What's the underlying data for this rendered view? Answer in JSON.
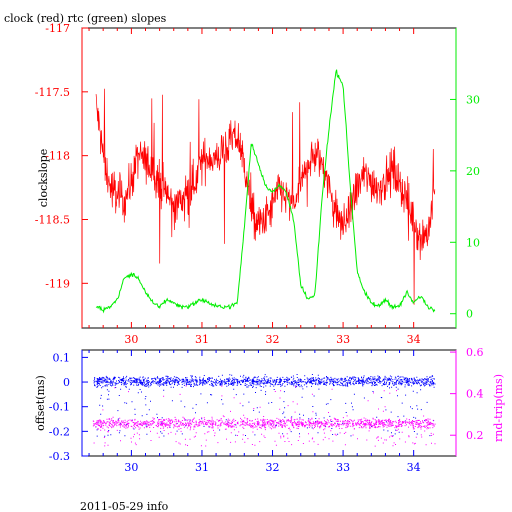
{
  "header": {
    "title": "clock (red) rtc (green) slopes"
  },
  "footer": {
    "date_label": "2011-05-29 info"
  },
  "colors": {
    "red": "#ff0000",
    "green": "#00ee00",
    "blue": "#0000ff",
    "magenta": "#ff00ff",
    "axis": "#000000"
  },
  "chart_data": [
    {
      "type": "line",
      "title": "clock (red) rtc (green) slopes",
      "xlim": [
        29.3,
        34.6
      ],
      "x_ticks": [
        "30",
        "31",
        "32",
        "33",
        "34"
      ],
      "left_axis": {
        "label": "clockslope",
        "ylim": [
          -119.35,
          -117
        ],
        "ticks": [
          "-117",
          "-117.5",
          "-118",
          "-118.5",
          "-119"
        ]
      },
      "right_axis": {
        "label": "",
        "ylim": [
          -2,
          40
        ],
        "ticks": [
          "0",
          "10",
          "20",
          "30"
        ]
      },
      "series": [
        {
          "axis": "left",
          "color": "red",
          "x": [
            29.5,
            29.6,
            29.7,
            29.8,
            29.9,
            30.0,
            30.1,
            30.2,
            30.3,
            30.4,
            30.5,
            30.6,
            30.7,
            30.8,
            30.9,
            31.0,
            31.1,
            31.2,
            31.3,
            31.4,
            31.5,
            31.6,
            31.7,
            31.8,
            31.9,
            32.0,
            32.1,
            32.2,
            32.3,
            32.4,
            32.5,
            32.6,
            32.7,
            32.8,
            32.9,
            33.0,
            33.1,
            33.2,
            33.3,
            33.4,
            33.5,
            33.6,
            33.7,
            33.8,
            33.9,
            34.0,
            34.1,
            34.2,
            34.3
          ],
          "y": [
            -117.6,
            -118.0,
            -118.25,
            -118.3,
            -118.35,
            -118.2,
            -118.0,
            -118.05,
            -118.1,
            -118.2,
            -118.3,
            -118.4,
            -118.35,
            -118.3,
            -118.2,
            -118.05,
            -118.0,
            -118.05,
            -117.95,
            -117.9,
            -117.85,
            -118.05,
            -118.45,
            -118.55,
            -118.5,
            -118.4,
            -118.25,
            -118.35,
            -118.4,
            -118.25,
            -118.05,
            -118.0,
            -118.05,
            -118.25,
            -118.45,
            -118.55,
            -118.45,
            -118.25,
            -118.15,
            -118.2,
            -118.25,
            -118.2,
            -118.1,
            -118.2,
            -118.35,
            -118.5,
            -118.65,
            -118.6,
            -118.3
          ]
        },
        {
          "axis": "right",
          "color": "green",
          "x": [
            29.5,
            29.6,
            29.7,
            29.8,
            29.9,
            30.0,
            30.1,
            30.2,
            30.3,
            30.4,
            30.5,
            30.6,
            30.7,
            30.8,
            30.9,
            31.0,
            31.1,
            31.2,
            31.3,
            31.4,
            31.5,
            31.6,
            31.7,
            31.8,
            31.9,
            32.0,
            32.1,
            32.2,
            32.3,
            32.4,
            32.5,
            32.6,
            32.7,
            32.8,
            32.9,
            33.0,
            33.1,
            33.2,
            33.3,
            33.4,
            33.5,
            33.6,
            33.7,
            33.8,
            33.9,
            34.0,
            34.1,
            34.2,
            34.3
          ],
          "y": [
            1,
            0.5,
            1,
            2,
            5,
            5.5,
            5,
            3,
            1.5,
            1,
            2,
            1.5,
            1,
            1,
            1.5,
            2,
            1.5,
            1,
            1,
            1,
            1.5,
            12,
            24,
            21,
            18,
            17,
            18,
            17,
            13,
            4,
            2,
            2.5,
            16,
            26,
            34,
            32,
            18,
            6,
            3,
            1.5,
            1,
            2,
            1,
            1,
            3,
            1.5,
            2.5,
            1,
            0.5
          ]
        }
      ]
    },
    {
      "type": "scatter",
      "title": "",
      "xlim": [
        29.3,
        34.6
      ],
      "x_ticks": [
        "30",
        "31",
        "32",
        "33",
        "34"
      ],
      "left_axis": {
        "label": "offset(ms)",
        "ylim": [
          -0.3,
          0.13
        ],
        "ticks": [
          "0.1",
          "0",
          "-0.1",
          "-0.2",
          "-0.3"
        ]
      },
      "right_axis": {
        "label": "rnd-trip(ms)",
        "ylim": [
          0.1,
          0.61
        ],
        "ticks": [
          "0.6",
          "0.4",
          "0.2"
        ]
      },
      "series": [
        {
          "axis": "left",
          "color": "blue",
          "x_range": [
            29.45,
            34.3
          ],
          "band_center": 0.005,
          "band_spread": 0.035,
          "outlier_low": -0.22
        },
        {
          "axis": "right",
          "color": "magenta",
          "x_range": [
            29.45,
            34.3
          ],
          "band_center": 0.26,
          "band_spread": 0.04,
          "outlier_low": 0.15,
          "outlier_high": 0.45
        }
      ]
    }
  ]
}
